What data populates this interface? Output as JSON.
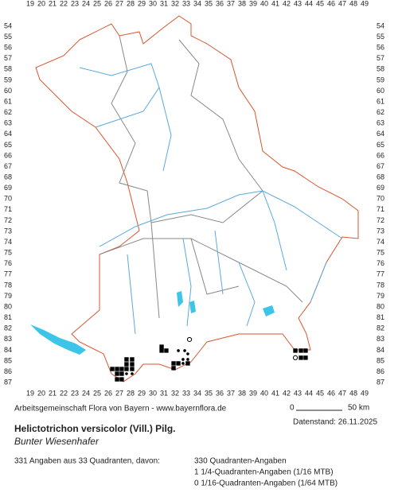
{
  "grid": {
    "columns": [
      19,
      20,
      21,
      22,
      23,
      24,
      25,
      26,
      27,
      28,
      29,
      30,
      31,
      32,
      33,
      34,
      35,
      36,
      37,
      38,
      39,
      40,
      41,
      42,
      43,
      44,
      45,
      46,
      47,
      48,
      49
    ],
    "rows": [
      54,
      55,
      56,
      57,
      58,
      59,
      60,
      61,
      62,
      63,
      64,
      65,
      66,
      67,
      68,
      69,
      70,
      71,
      72,
      73,
      74,
      75,
      76,
      77,
      78,
      79,
      80,
      81,
      82,
      83,
      84,
      85,
      86,
      87
    ]
  },
  "records": [
    {
      "x": 26.36,
      "y": 85.74,
      "kind": "square"
    },
    {
      "x": 26.79,
      "y": 85.74,
      "kind": "square"
    },
    {
      "x": 27.21,
      "y": 85.74,
      "kind": "square"
    },
    {
      "x": 27.64,
      "y": 85.74,
      "kind": "square"
    },
    {
      "x": 28.14,
      "y": 85.74,
      "kind": "square"
    },
    {
      "x": 27.64,
      "y": 84.85,
      "kind": "square"
    },
    {
      "x": 28.14,
      "y": 84.85,
      "kind": "square"
    },
    {
      "x": 27.64,
      "y": 85.3,
      "kind": "square"
    },
    {
      "x": 28.14,
      "y": 85.3,
      "kind": "square"
    },
    {
      "x": 26.79,
      "y": 86.18,
      "kind": "square"
    },
    {
      "x": 27.21,
      "y": 86.18,
      "kind": "square"
    },
    {
      "x": 27.64,
      "y": 86.18,
      "kind": "dot"
    },
    {
      "x": 28.14,
      "y": 86.18,
      "kind": "dot"
    },
    {
      "x": 26.79,
      "y": 86.7,
      "kind": "square"
    },
    {
      "x": 27.21,
      "y": 86.7,
      "kind": "square"
    },
    {
      "x": 30.79,
      "y": 83.68,
      "kind": "square"
    },
    {
      "x": 30.79,
      "y": 84.04,
      "kind": "square"
    },
    {
      "x": 31.21,
      "y": 84.04,
      "kind": "square"
    },
    {
      "x": 31.86,
      "y": 85.22,
      "kind": "square"
    },
    {
      "x": 32.29,
      "y": 85.22,
      "kind": "square"
    },
    {
      "x": 32.71,
      "y": 85.22,
      "kind": "dot"
    },
    {
      "x": 33.14,
      "y": 85.22,
      "kind": "square"
    },
    {
      "x": 31.86,
      "y": 85.66,
      "kind": "square"
    },
    {
      "x": 32.71,
      "y": 84.85,
      "kind": "dot"
    },
    {
      "x": 33.14,
      "y": 84.85,
      "kind": "dot"
    },
    {
      "x": 33.14,
      "y": 84.34,
      "kind": "dot"
    },
    {
      "x": 32.29,
      "y": 84.04,
      "kind": "dot"
    },
    {
      "x": 32.86,
      "y": 84.04,
      "kind": "dot"
    },
    {
      "x": 33.29,
      "y": 83.01,
      "kind": "circle"
    },
    {
      "x": 42.79,
      "y": 84.04,
      "kind": "square"
    },
    {
      "x": 43.29,
      "y": 84.04,
      "kind": "square"
    },
    {
      "x": 43.71,
      "y": 84.04,
      "kind": "square"
    },
    {
      "x": 43.29,
      "y": 84.7,
      "kind": "square"
    },
    {
      "x": 43.71,
      "y": 84.7,
      "kind": "square"
    },
    {
      "x": 42.79,
      "y": 84.7,
      "kind": "circle"
    }
  ],
  "footer": {
    "credit": "Arbeitsgemeinschaft Flora von Bayern - www.bayernflora.de",
    "scale_start": "0",
    "scale_end": "50 km",
    "date": "Datenstand: 26.11.2025"
  },
  "species": {
    "name": "Helictotrichon versicolor (Vill.) Pilg.",
    "common_name": "Bunter Wiesenhafer"
  },
  "summary": {
    "total": "331 Angaben aus 33 Quadranten, davon:",
    "quadrant": "330 Quadranten-Angaben",
    "quarter": "1 1/4-Quadranten-Angaben (1/16 MTB)",
    "sixteenth": "0 1/16-Quadranten-Angaben (1/64 MTB)"
  }
}
